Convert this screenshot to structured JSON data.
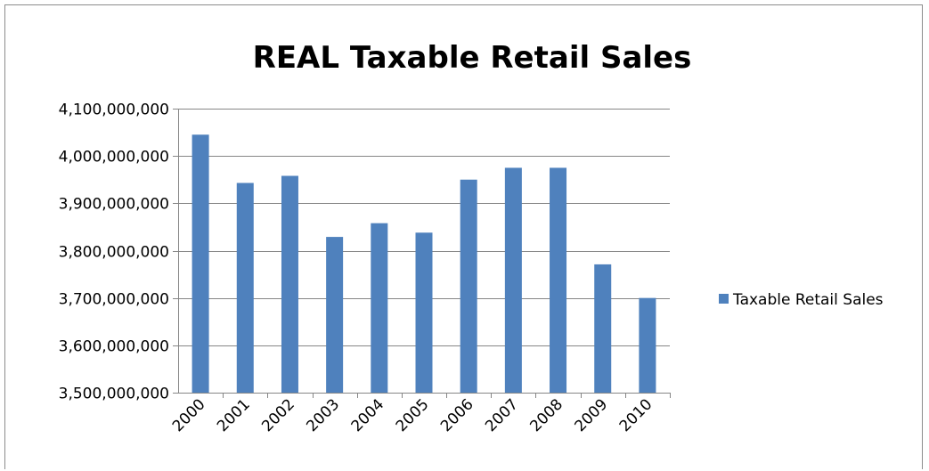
{
  "chart_data": {
    "type": "bar",
    "title": "REAL Taxable Retail Sales",
    "xlabel": "",
    "ylabel": "",
    "categories": [
      "2000",
      "2001",
      "2002",
      "2003",
      "2004",
      "2005",
      "2006",
      "2007",
      "2008",
      "2009",
      "2010"
    ],
    "series": [
      {
        "name": "Taxable Retail Sales",
        "color": "#4f81bd",
        "values": [
          4045000000,
          3943000000,
          3958000000,
          3829000000,
          3858000000,
          3838000000,
          3950000000,
          3975000000,
          3975000000,
          3771000000,
          3700000000
        ]
      }
    ],
    "ylim": [
      3500000000,
      4100000000
    ],
    "yticks": [
      "3,500,000,000",
      "3,600,000,000",
      "3,700,000,000",
      "3,800,000,000",
      "3,900,000,000",
      "4,000,000,000",
      "4,100,000,000"
    ],
    "ytick_values": [
      3500000000,
      3600000000,
      3700000000,
      3800000000,
      3900000000,
      4000000000,
      4100000000
    ],
    "grid": true,
    "legend": "right",
    "gridline_color": "#868686",
    "axis_color": "#868686"
  }
}
